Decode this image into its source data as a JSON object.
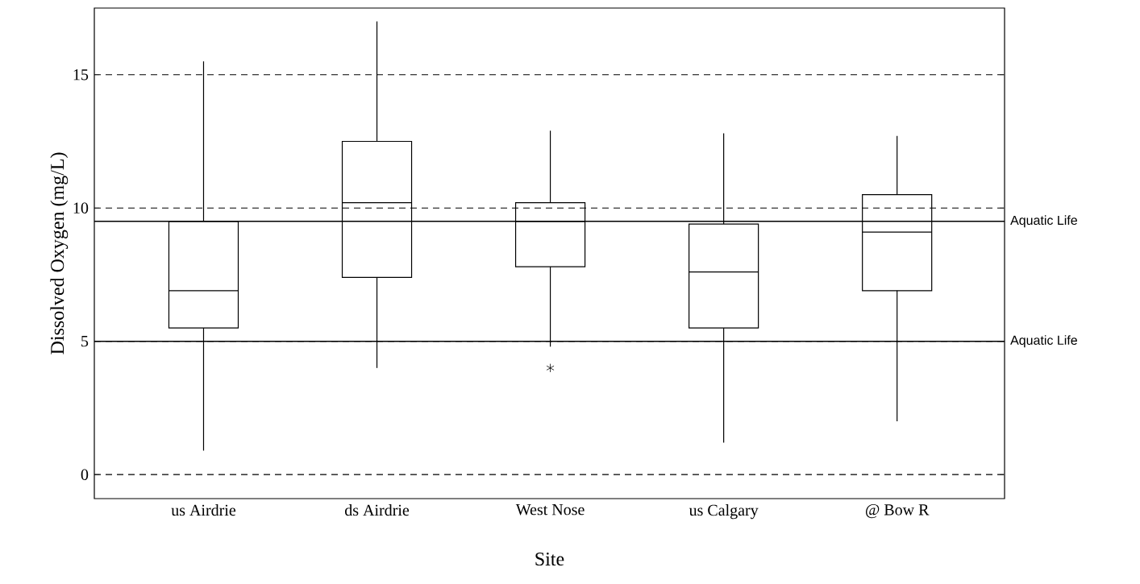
{
  "chart_data": {
    "type": "box",
    "xlabel": "Site",
    "ylabel": "Dissolved Oxygen (mg/L)",
    "categories": [
      "us Airdrie",
      "ds Airdrie",
      "West Nose",
      "us Calgary",
      "@ Bow R"
    ],
    "boxes": [
      {
        "low": 0.9,
        "q1": 5.5,
        "median": 6.9,
        "q3": 9.5,
        "high": 15.5
      },
      {
        "low": 4.0,
        "q1": 7.4,
        "median": 10.2,
        "q3": 12.5,
        "high": 17.0
      },
      {
        "low": 4.8,
        "q1": 7.8,
        "median": 9.5,
        "q3": 10.2,
        "high": 12.9,
        "outliers": [
          4.0
        ]
      },
      {
        "low": 1.2,
        "q1": 5.5,
        "median": 7.6,
        "q3": 9.4,
        "high": 12.8
      },
      {
        "low": 2.0,
        "q1": 6.9,
        "median": 9.1,
        "q3": 10.5,
        "high": 12.7
      }
    ],
    "ylim": [
      -0.9,
      17.5
    ],
    "yticks": [
      0,
      5,
      10,
      15
    ],
    "grid": "y",
    "ref_lines": [
      {
        "axis": "y",
        "value": 9.5,
        "label": "Aquatic Life"
      },
      {
        "axis": "y",
        "value": 5,
        "label": "Aquatic Life"
      }
    ]
  }
}
